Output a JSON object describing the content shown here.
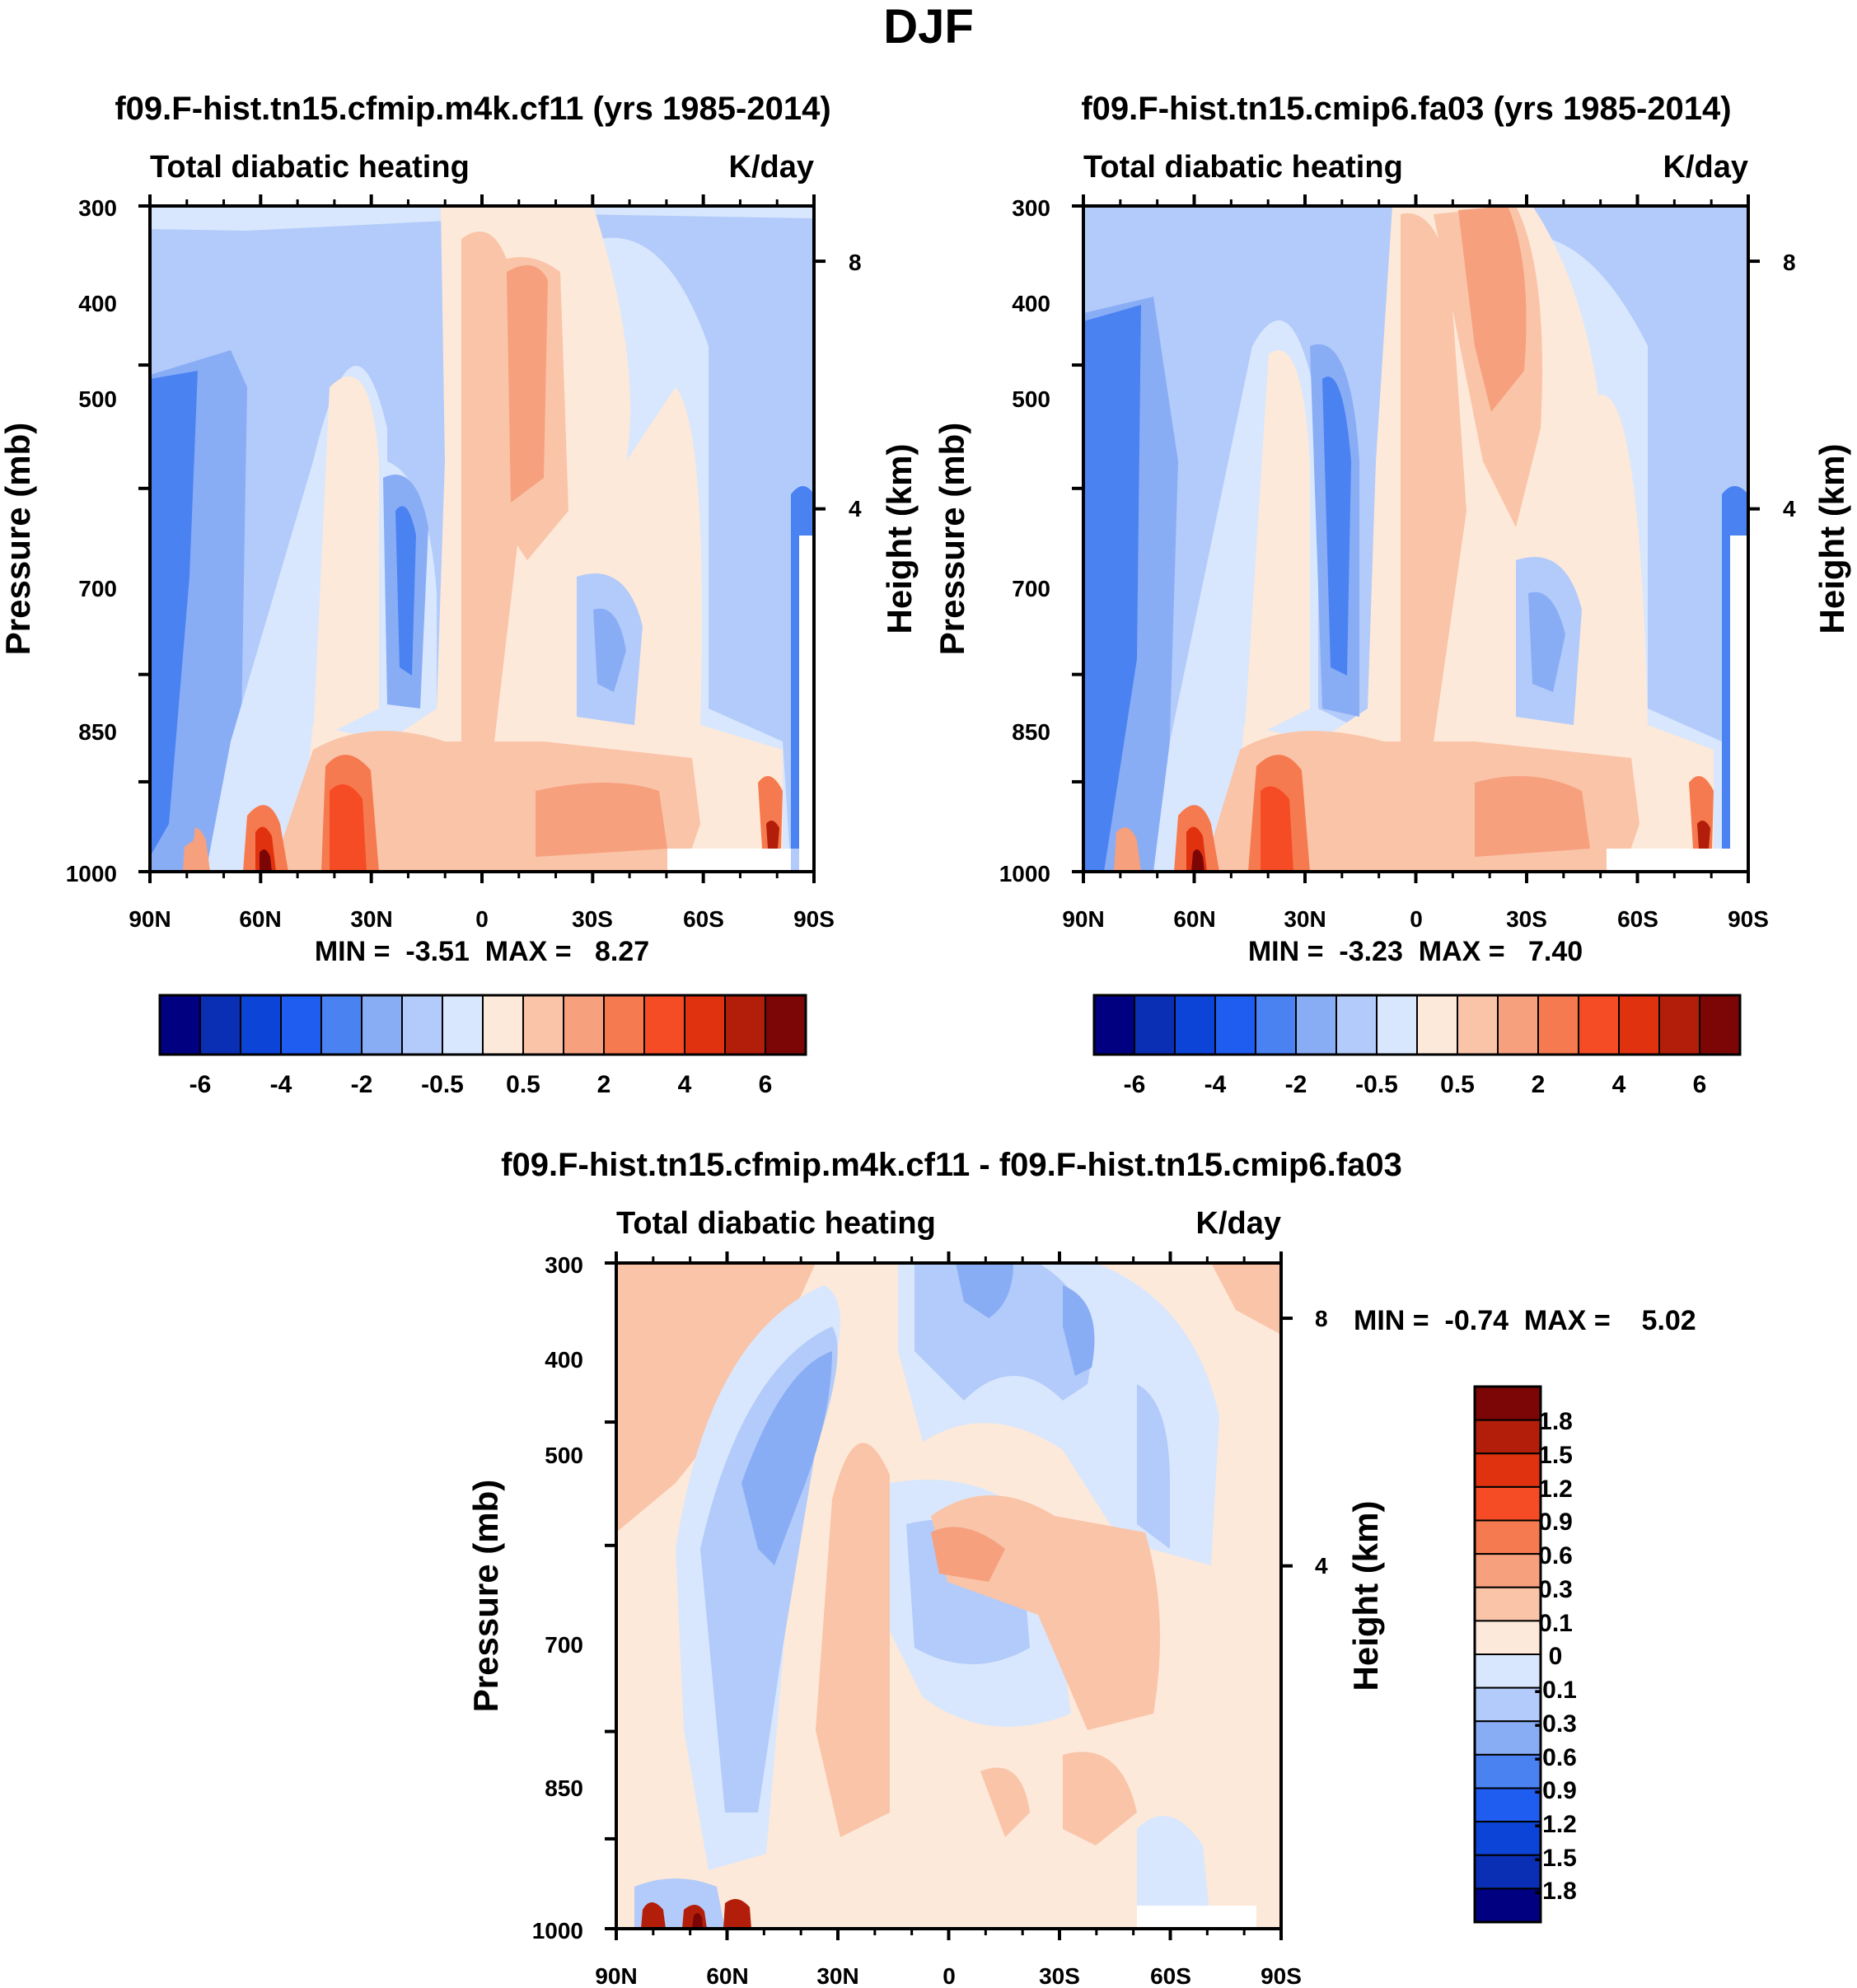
{
  "figure_title": "DJF",
  "colors": {
    "panel_levels": [
      "#000080",
      "#0a2fb4",
      "#0d44d8",
      "#1f5cf0",
      "#4a82f2",
      "#89adf5",
      "#b3cbfa",
      "#d8e7fd",
      "#fde9d9",
      "#fac4a8",
      "#f6a07e",
      "#f67a4f",
      "#f54c25",
      "#e0320f",
      "#b21e0a",
      "#7c0606"
    ],
    "diff_levels": [
      "#000080",
      "#0a2fb4",
      "#0d44d8",
      "#1f5cf0",
      "#4a82f2",
      "#89adf5",
      "#b3cbfa",
      "#d8e7fd",
      "#fde9d9",
      "#fac4a8",
      "#f6a07e",
      "#f67a4f",
      "#f54c25",
      "#e0320f",
      "#b21e0a",
      "#7c0606"
    ]
  },
  "chart_data": [
    {
      "type": "heatmap",
      "id": "panel1",
      "title": "f09.F-hist.tn15.cfmip.m4k.cf11 (yrs 1985-2014)",
      "left_label": "Total diabatic heating",
      "right_label": "K/day",
      "ylabel": "Pressure (mb)",
      "ylabel_right": "Height (km)",
      "x_ticks": [
        "90N",
        "60N",
        "30N",
        "0",
        "30S",
        "60S",
        "90S"
      ],
      "y_ticks": [
        "300",
        "400",
        "500",
        "700",
        "850",
        "1000"
      ],
      "y_tick_values": [
        300,
        400,
        500,
        700,
        850,
        1000
      ],
      "ylim": [
        1000,
        300
      ],
      "right_ticks": [
        "8",
        "4"
      ],
      "stats": "MIN =  -3.51  MAX =   8.27",
      "colorbar_labels": [
        "-6",
        "-4",
        "-2",
        "-0.5",
        "0.5",
        "2",
        "4",
        "6"
      ],
      "features": [
        {
          "lat": 38,
          "p": 930,
          "value": 5.5
        },
        {
          "lat": 60,
          "p": 980,
          "value": 8.27
        },
        {
          "lat": 5,
          "p": 550,
          "value": 3.0
        },
        {
          "lat": -78,
          "p": 975,
          "value": 5.0
        },
        {
          "lat": 23,
          "p": 700,
          "value": -3.0
        },
        {
          "lat": -35,
          "p": 760,
          "value": -2.0
        },
        {
          "lat": 75,
          "p": 520,
          "value": -3.51
        }
      ]
    },
    {
      "type": "heatmap",
      "id": "panel2",
      "title": "f09.F-hist.tn15.cmip6.fa03 (yrs 1985-2014)",
      "left_label": "Total diabatic heating",
      "right_label": "K/day",
      "ylabel": "Pressure (mb)",
      "ylabel_right": "Height (km)",
      "x_ticks": [
        "90N",
        "60N",
        "30N",
        "0",
        "30S",
        "60S",
        "90S"
      ],
      "y_ticks": [
        "300",
        "400",
        "500",
        "700",
        "850",
        "1000"
      ],
      "y_tick_values": [
        300,
        400,
        500,
        700,
        850,
        1000
      ],
      "ylim": [
        1000,
        300
      ],
      "right_ticks": [
        "8",
        "4"
      ],
      "stats": "MIN =  -3.23  MAX =   7.40",
      "colorbar_labels": [
        "-6",
        "-4",
        "-2",
        "-0.5",
        "0.5",
        "2",
        "4",
        "6"
      ],
      "features": [
        {
          "lat": 38,
          "p": 930,
          "value": 5.0
        },
        {
          "lat": 60,
          "p": 980,
          "value": 7.4
        },
        {
          "lat": -5,
          "p": 480,
          "value": 2.6
        },
        {
          "lat": -78,
          "p": 975,
          "value": 4.5
        },
        {
          "lat": 23,
          "p": 700,
          "value": -3.0
        },
        {
          "lat": -35,
          "p": 760,
          "value": -2.0
        },
        {
          "lat": 75,
          "p": 520,
          "value": -3.23
        }
      ]
    },
    {
      "type": "heatmap",
      "id": "diff",
      "title": "f09.F-hist.tn15.cfmip.m4k.cf11 - f09.F-hist.tn15.cmip6.fa03",
      "left_label": "Total diabatic heating",
      "right_label": "K/day",
      "ylabel": "Pressure (mb)",
      "ylabel_right": "Height (km)",
      "x_ticks": [
        "90N",
        "60N",
        "30N",
        "0",
        "30S",
        "60S",
        "90S"
      ],
      "y_ticks": [
        "300",
        "400",
        "500",
        "700",
        "850",
        "1000"
      ],
      "y_tick_values": [
        300,
        400,
        500,
        700,
        850,
        1000
      ],
      "ylim": [
        1000,
        300
      ],
      "right_ticks": [
        "8",
        "4"
      ],
      "stats": "MIN =  -0.74  MAX =    5.02",
      "colorbar_labels": [
        "1.8",
        "1.5",
        "1.2",
        "0.9",
        "0.6",
        "0.3",
        "0.1",
        "0",
        "-0.1",
        "-0.3",
        "-0.6",
        "-0.9",
        "-1.2",
        "-1.5",
        "-1.8"
      ],
      "features": [
        {
          "lat": 30,
          "p": 700,
          "value": 0.6
        },
        {
          "lat": -10,
          "p": 620,
          "value": 0.6
        },
        {
          "lat": 55,
          "p": 500,
          "value": -0.4
        },
        {
          "lat": -5,
          "p": 760,
          "value": -0.3
        },
        {
          "lat": 62,
          "p": 990,
          "value": 5.02
        }
      ]
    }
  ]
}
